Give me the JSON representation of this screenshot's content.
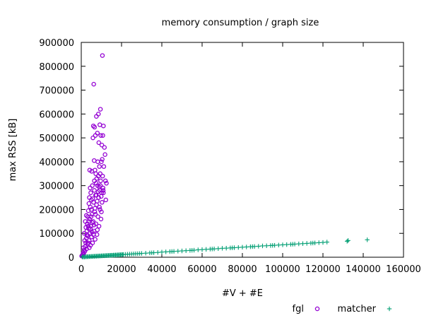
{
  "chart_data": {
    "type": "scatter",
    "title": "memory consumption / graph size",
    "xlabel": "#V + #E",
    "ylabel": "max RSS [kB]",
    "xlim": [
      0,
      160000
    ],
    "ylim": [
      0,
      900000
    ],
    "xticks": [
      0,
      20000,
      40000,
      60000,
      80000,
      100000,
      120000,
      140000,
      160000
    ],
    "yticks": [
      0,
      100000,
      200000,
      300000,
      400000,
      500000,
      600000,
      700000,
      800000,
      900000
    ],
    "grid": false,
    "legend_position": "bottom-right-outside",
    "series": [
      {
        "name": "fgl",
        "marker": "circle",
        "color": "#9400d3",
        "points": [
          [
            200,
            5000
          ],
          [
            500,
            8000
          ],
          [
            800,
            12000
          ],
          [
            1000,
            20000
          ],
          [
            1200,
            15000
          ],
          [
            1500,
            30000
          ],
          [
            1800,
            25000
          ],
          [
            2000,
            45000
          ],
          [
            2200,
            60000
          ],
          [
            2500,
            80000
          ],
          [
            2600,
            35000
          ],
          [
            2800,
            110000
          ],
          [
            3000,
            140000
          ],
          [
            3100,
            55000
          ],
          [
            3200,
            170000
          ],
          [
            3300,
            90000
          ],
          [
            3500,
            195000
          ],
          [
            3600,
            120000
          ],
          [
            3800,
            225000
          ],
          [
            3900,
            70000
          ],
          [
            4000,
            250000
          ],
          [
            4100,
            160000
          ],
          [
            4200,
            365000
          ],
          [
            4300,
            100000
          ],
          [
            4500,
            210000
          ],
          [
            4600,
            50000
          ],
          [
            4700,
            270000
          ],
          [
            4800,
            130000
          ],
          [
            5000,
            240000
          ],
          [
            5100,
            85000
          ],
          [
            5200,
            360000
          ],
          [
            5300,
            180000
          ],
          [
            5500,
            300000
          ],
          [
            5600,
            60000
          ],
          [
            5800,
            500000
          ],
          [
            5900,
            150000
          ],
          [
            6000,
            550000
          ],
          [
            6100,
            230000
          ],
          [
            6200,
            725000
          ],
          [
            6300,
            110000
          ],
          [
            6400,
            405000
          ],
          [
            6500,
            280000
          ],
          [
            6600,
            545000
          ],
          [
            6700,
            190000
          ],
          [
            6800,
            365000
          ],
          [
            6900,
            75000
          ],
          [
            7000,
            510000
          ],
          [
            7100,
            260000
          ],
          [
            7200,
            350000
          ],
          [
            7300,
            140000
          ],
          [
            7500,
            590000
          ],
          [
            7600,
            220000
          ],
          [
            7700,
            330000
          ],
          [
            7800,
            95000
          ],
          [
            8000,
            520000
          ],
          [
            8100,
            300000
          ],
          [
            8200,
            400000
          ],
          [
            8300,
            170000
          ],
          [
            8500,
            600000
          ],
          [
            8600,
            250000
          ],
          [
            8700,
            480000
          ],
          [
            8800,
            130000
          ],
          [
            9000,
            380000
          ],
          [
            9100,
            280000
          ],
          [
            9200,
            555000
          ],
          [
            9300,
            200000
          ],
          [
            9500,
            620000
          ],
          [
            9600,
            320000
          ],
          [
            9700,
            510000
          ],
          [
            9800,
            160000
          ],
          [
            10000,
            400000
          ],
          [
            10100,
            270000
          ],
          [
            10200,
            470000
          ],
          [
            10300,
            230000
          ],
          [
            10500,
            845000
          ],
          [
            10600,
            340000
          ],
          [
            10700,
            510000
          ],
          [
            10800,
            290000
          ],
          [
            11000,
            550000
          ],
          [
            11200,
            380000
          ],
          [
            11500,
            460000
          ],
          [
            11800,
            430000
          ],
          [
            12000,
            320000
          ],
          [
            12200,
            240000
          ],
          [
            12500,
            310000
          ],
          [
            1500,
            100000
          ],
          [
            2000,
            150000
          ],
          [
            2500,
            175000
          ],
          [
            3000,
            90000
          ],
          [
            3500,
            60000
          ],
          [
            4000,
            40000
          ],
          [
            4500,
            120000
          ],
          [
            5000,
            200000
          ],
          [
            5500,
            145000
          ],
          [
            6000,
            95000
          ],
          [
            6500,
            320000
          ],
          [
            7000,
            180000
          ],
          [
            7500,
            260000
          ],
          [
            8000,
            115000
          ],
          [
            8500,
            340000
          ],
          [
            9000,
            210000
          ],
          [
            9500,
            300000
          ],
          [
            10000,
            190000
          ],
          [
            11000,
            270000
          ],
          [
            2300,
            125000
          ],
          [
            3700,
            150000
          ],
          [
            4400,
            290000
          ],
          [
            5700,
            245000
          ],
          [
            6800,
            205000
          ],
          [
            7900,
            235000
          ],
          [
            8900,
            295000
          ],
          [
            9900,
            255000
          ],
          [
            10900,
            280000
          ],
          [
            1100,
            40000
          ],
          [
            1700,
            70000
          ],
          [
            2700,
            95000
          ],
          [
            3400,
            130000
          ],
          [
            4900,
            170000
          ],
          [
            5400,
            105000
          ],
          [
            6300,
            135000
          ],
          [
            7400,
            310000
          ],
          [
            8400,
            275000
          ],
          [
            9400,
            350000
          ],
          [
            10400,
            410000
          ]
        ]
      },
      {
        "name": "matcher",
        "marker": "plus",
        "color": "#009e73",
        "points": [
          [
            500,
            1000
          ],
          [
            1000,
            1500
          ],
          [
            2000,
            2000
          ],
          [
            3000,
            2500
          ],
          [
            4000,
            3000
          ],
          [
            5000,
            3500
          ],
          [
            6000,
            4000
          ],
          [
            7000,
            4500
          ],
          [
            8000,
            5000
          ],
          [
            9000,
            5500
          ],
          [
            10000,
            6000
          ],
          [
            11000,
            6500
          ],
          [
            12000,
            7000
          ],
          [
            13000,
            7500
          ],
          [
            14000,
            8000
          ],
          [
            15000,
            8500
          ],
          [
            16000,
            9000
          ],
          [
            17000,
            9500
          ],
          [
            18000,
            10000
          ],
          [
            19000,
            10500
          ],
          [
            20000,
            11000
          ],
          [
            21000,
            11500
          ],
          [
            22000,
            12000
          ],
          [
            23000,
            12500
          ],
          [
            24000,
            13000
          ],
          [
            25000,
            13500
          ],
          [
            26000,
            14000
          ],
          [
            27000,
            14500
          ],
          [
            28000,
            15000
          ],
          [
            29000,
            15500
          ],
          [
            30000,
            16000
          ],
          [
            32000,
            17000
          ],
          [
            34000,
            18000
          ],
          [
            36000,
            19000
          ],
          [
            38000,
            20000
          ],
          [
            40000,
            21500
          ],
          [
            42000,
            22500
          ],
          [
            44000,
            23500
          ],
          [
            46000,
            24500
          ],
          [
            48000,
            25500
          ],
          [
            50000,
            26500
          ],
          [
            52000,
            27500
          ],
          [
            54000,
            28500
          ],
          [
            56000,
            29500
          ],
          [
            58000,
            31000
          ],
          [
            60000,
            32000
          ],
          [
            62000,
            33000
          ],
          [
            64000,
            34000
          ],
          [
            66000,
            35000
          ],
          [
            68000,
            36000
          ],
          [
            70000,
            37500
          ],
          [
            72000,
            38000
          ],
          [
            74000,
            39000
          ],
          [
            76000,
            40000
          ],
          [
            78000,
            41000
          ],
          [
            80000,
            42000
          ],
          [
            82000,
            43000
          ],
          [
            84000,
            44000
          ],
          [
            86000,
            45000
          ],
          [
            88000,
            46000
          ],
          [
            90000,
            47500
          ],
          [
            92000,
            48000
          ],
          [
            94000,
            49000
          ],
          [
            96000,
            50000
          ],
          [
            98000,
            51000
          ],
          [
            100000,
            52000
          ],
          [
            102000,
            53000
          ],
          [
            104000,
            54000
          ],
          [
            106000,
            55000
          ],
          [
            108000,
            56000
          ],
          [
            110000,
            57000
          ],
          [
            112000,
            58000
          ],
          [
            114000,
            59000
          ],
          [
            116000,
            60000
          ],
          [
            118000,
            61000
          ],
          [
            120000,
            62000
          ],
          [
            122000,
            63500
          ],
          [
            132000,
            67000
          ],
          [
            132500,
            70000
          ],
          [
            142000,
            73000
          ],
          [
            1500,
            800
          ],
          [
            2500,
            1800
          ],
          [
            3500,
            2200
          ],
          [
            4500,
            2800
          ],
          [
            5500,
            3200
          ],
          [
            6500,
            3800
          ],
          [
            7500,
            4200
          ],
          [
            8500,
            4800
          ],
          [
            9500,
            5200
          ],
          [
            10500,
            5800
          ],
          [
            11500,
            6200
          ],
          [
            12500,
            6800
          ],
          [
            13500,
            7200
          ],
          [
            14500,
            7800
          ],
          [
            15500,
            8200
          ],
          [
            16500,
            8800
          ],
          [
            17500,
            9200
          ],
          [
            18500,
            9800
          ],
          [
            19500,
            10200
          ],
          [
            20500,
            10800
          ],
          [
            35000,
            18500
          ],
          [
            45000,
            24000
          ],
          [
            55000,
            29000
          ],
          [
            65000,
            34500
          ],
          [
            75000,
            39500
          ],
          [
            85000,
            44500
          ],
          [
            95000,
            49500
          ],
          [
            105000,
            54500
          ],
          [
            115000,
            59500
          ]
        ]
      }
    ]
  }
}
